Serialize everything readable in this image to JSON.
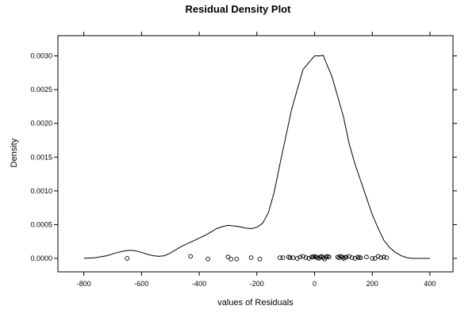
{
  "chart_data": {
    "type": "line",
    "title": "Residual Density Plot",
    "xlabel": "values of Residuals",
    "ylabel": "Density",
    "xlim": [
      -890,
      480
    ],
    "ylim": [
      -0.0002,
      0.0033
    ],
    "x_ticks": [
      -800,
      -600,
      -400,
      -200,
      0,
      200,
      400
    ],
    "x_tick_labels": [
      "-800",
      "-600",
      "-400",
      "-200",
      "0",
      "200",
      "400"
    ],
    "y_ticks": [
      0.0,
      0.0005,
      0.001,
      0.0015,
      0.002,
      0.0025,
      0.003
    ],
    "y_tick_labels": [
      "0.0000",
      "0.0005",
      "0.0010",
      "0.0015",
      "0.0020",
      "0.0025",
      "0.0030"
    ],
    "grid": false,
    "series": [
      {
        "kind": "density_line",
        "x": [
          -800,
          -760,
          -720,
          -690,
          -660,
          -640,
          -620,
          -600,
          -580,
          -560,
          -540,
          -520,
          -500,
          -480,
          -460,
          -440,
          -420,
          -400,
          -380,
          -360,
          -340,
          -320,
          -300,
          -280,
          -260,
          -240,
          -220,
          -200,
          -180,
          -160,
          -140,
          -120,
          -100,
          -80,
          -60,
          -40,
          -20,
          0,
          10,
          20,
          30,
          40,
          60,
          80,
          100,
          120,
          140,
          160,
          180,
          200,
          220,
          240,
          260,
          280,
          300,
          320,
          340,
          360,
          380,
          400
        ],
        "y": [
          0.0,
          1e-05,
          4e-05,
          8e-05,
          0.00011,
          0.00012,
          0.00011,
          9e-05,
          6e-05,
          4e-05,
          3e-05,
          4e-05,
          8e-05,
          0.00013,
          0.00018,
          0.00022,
          0.00026,
          0.0003,
          0.00034,
          0.00039,
          0.00044,
          0.00047,
          0.00049,
          0.00048,
          0.00047,
          0.00045,
          0.00044,
          0.00046,
          0.00052,
          0.00068,
          0.00098,
          0.0014,
          0.0018,
          0.0022,
          0.0025,
          0.0028,
          0.0029,
          0.003,
          0.003,
          0.003,
          0.00301,
          0.0029,
          0.0027,
          0.0024,
          0.0021,
          0.0017,
          0.0014,
          0.00115,
          0.0009,
          0.00065,
          0.00045,
          0.00027,
          0.00016,
          9e-05,
          4e-05,
          1e-05,
          0.0,
          0.0,
          0.0,
          0.0
        ]
      },
      {
        "kind": "rug_points",
        "x": [
          -650,
          -430,
          -370,
          -300,
          -290,
          -270,
          -220,
          -190,
          -120,
          -110,
          -90,
          -85,
          -75,
          -60,
          -50,
          -40,
          -30,
          -20,
          -10,
          -5,
          0,
          5,
          10,
          15,
          20,
          25,
          30,
          35,
          40,
          45,
          50,
          80,
          85,
          90,
          95,
          100,
          105,
          110,
          120,
          130,
          140,
          150,
          155,
          160,
          180,
          200,
          210,
          220,
          230,
          240,
          250
        ],
        "y": [
          0.0,
          3e-05,
          -1e-05,
          2e-05,
          -1e-05,
          -1e-05,
          1e-05,
          -1e-05,
          1e-05,
          1e-05,
          2e-05,
          1e-05,
          1e-05,
          0.0,
          2e-05,
          3e-05,
          1e-05,
          0.0,
          2e-05,
          2e-05,
          3e-05,
          2e-05,
          1e-05,
          0.0,
          2e-05,
          3e-05,
          1e-05,
          -1e-05,
          2e-05,
          3e-05,
          2e-05,
          2e-05,
          1e-05,
          3e-05,
          2e-05,
          0.0,
          1e-05,
          2e-05,
          3e-05,
          1e-05,
          0.0,
          2e-05,
          1e-05,
          1e-05,
          2e-05,
          0.0,
          0.0,
          3e-05,
          1e-05,
          2e-05,
          1e-05
        ]
      }
    ]
  }
}
